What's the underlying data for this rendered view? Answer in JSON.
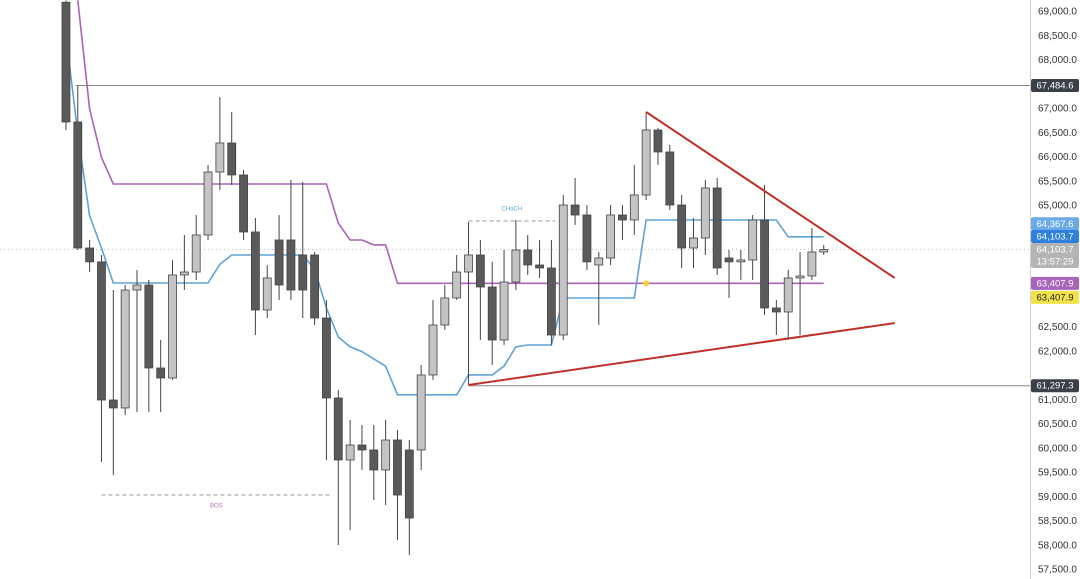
{
  "chart_data": {
    "type": "candlestick",
    "up_color": "#c4c4c4",
    "down_color": "#5a5a5a",
    "wick_color": "#444444",
    "xlim": [
      -5.57,
      81.42
    ],
    "ylim": [
      57314,
      69247
    ],
    "yticks": [
      {
        "value": 69000,
        "label": "69,000.0"
      },
      {
        "value": 68500,
        "label": "68,500.0"
      },
      {
        "value": 68000,
        "label": "68,000.0"
      },
      {
        "value": 67000,
        "label": "67,000.0"
      },
      {
        "value": 66500,
        "label": "66,500.0"
      },
      {
        "value": 66000,
        "label": "66,000.0"
      },
      {
        "value": 65500,
        "label": "65,500.0"
      },
      {
        "value": 65000,
        "label": "65,000.0"
      },
      {
        "value": 62500,
        "label": "62,500.0"
      },
      {
        "value": 62000,
        "label": "62,000.0"
      },
      {
        "value": 61000,
        "label": "61,000.0"
      },
      {
        "value": 60500,
        "label": "60,500.0"
      },
      {
        "value": 60000,
        "label": "60,000.0"
      },
      {
        "value": 59500,
        "label": "59,500.0"
      },
      {
        "value": 59000,
        "label": "59,000.0"
      },
      {
        "value": 58500,
        "label": "58,500.0"
      },
      {
        "value": 58000,
        "label": "58,000.0"
      },
      {
        "value": 57500,
        "label": "57,500.0"
      }
    ],
    "open": [
      69200,
      66733,
      64136,
      63850,
      61003,
      60839,
      63270,
      63373,
      61663,
      61457,
      63580,
      63641,
      64404,
      65702,
      66300,
      65641,
      64466,
      62858,
      64301,
      64301,
      63992,
      63992,
      62693,
      61045,
      59767,
      60076,
      59973,
      59561,
      60179,
      59973,
      59973,
      61519,
      62549,
      63106,
      63641,
      63992,
      63332,
      62240,
      63435,
      64095,
      63786,
      63724,
      62343,
      65022,
      64816,
      63786,
      63930,
      64816,
      64713,
      65228,
      66568,
      66115,
      65022,
      64136,
      64342,
      65373,
      63930,
      63850,
      63889,
      64713,
      62900,
      62817,
      63518,
      63559,
      64054
    ],
    "high": [
      69240,
      67475,
      64301,
      63992,
      63270,
      63373,
      63683,
      63477,
      62240,
      63889,
      64404,
      64816,
      65847,
      67248,
      66939,
      65744,
      64754,
      63786,
      64816,
      65538,
      65496,
      64054,
      63064,
      61210,
      60591,
      60488,
      60488,
      60591,
      60385,
      60179,
      61725,
      63064,
      63373,
      63992,
      64672,
      64301,
      63850,
      64095,
      64713,
      64404,
      64301,
      64301,
      65228,
      65579,
      65022,
      64054,
      65022,
      65022,
      65847,
      66939,
      66609,
      66259,
      65228,
      64754,
      65538,
      65579,
      64095,
      64095,
      64816,
      65434,
      63064,
      63683,
      64054,
      64548,
      64200
    ],
    "low": [
      66568,
      64095,
      63641,
      59725,
      59458,
      60694,
      60756,
      60756,
      60756,
      61416,
      63270,
      63477,
      64301,
      65331,
      65434,
      64301,
      62343,
      62693,
      63064,
      63064,
      62693,
      62549,
      59767,
      58015,
      58324,
      59561,
      58942,
      58839,
      58118,
      57809,
      59561,
      61416,
      62446,
      63064,
      61313,
      62240,
      61725,
      62137,
      63270,
      63580,
      63518,
      62137,
      62240,
      64610,
      63683,
      62549,
      63786,
      64301,
      64404,
      65125,
      65847,
      64919,
      63724,
      63724,
      63992,
      63580,
      63106,
      63477,
      63477,
      62755,
      62343,
      62240,
      62343,
      63477,
      63992
    ],
    "close": [
      66733,
      64136,
      63850,
      61003,
      60839,
      63270,
      63373,
      61663,
      61457,
      63580,
      63641,
      64404,
      65702,
      66300,
      65641,
      64466,
      62858,
      63518,
      63373,
      63270,
      63270,
      62693,
      61045,
      59767,
      60076,
      59973,
      59561,
      60179,
      59045,
      58571,
      61519,
      62549,
      63106,
      63641,
      63992,
      63332,
      62240,
      63435,
      64095,
      63786,
      63724,
      62343,
      65022,
      64816,
      63850,
      63930,
      64816,
      64713,
      65228,
      66568,
      66115,
      65022,
      64136,
      64342,
      65373,
      63724,
      63850,
      63889,
      64713,
      62900,
      62817,
      63518,
      63559,
      64054,
      64104
    ],
    "series": [
      {
        "color": "#a864b8",
        "values": [
          null,
          69240,
          67000,
          66000,
          65454,
          65454,
          65454,
          65454,
          65454,
          65454,
          65454,
          65454,
          65454,
          65454,
          65454,
          65454,
          65454,
          65454,
          65454,
          65454,
          65454,
          65454,
          65454,
          64650,
          64300,
          64300,
          64200,
          64200,
          63407.9,
          63407.9,
          63407.9,
          63407.9,
          63407.9,
          63407.9,
          63407.9,
          63407.9,
          63407.9,
          63407.9,
          63407.9,
          63407.9,
          63407.9,
          63407.9,
          63407.9,
          63407.9,
          63407.9,
          63407.9,
          63407.9,
          63407.9,
          63407.9,
          63407.9,
          63407.9,
          63407.9,
          63407.9,
          63407.9,
          63407.9,
          63407.9,
          63407.9,
          63407.9,
          63407.9,
          63407.9,
          63407.9,
          63407.9,
          63407.9,
          63407.9,
          63407.9
        ]
      },
      {
        "color": "#5fa3d6",
        "values": [
          68500,
          66500,
          64800,
          64136,
          63414,
          63414,
          63414,
          63414,
          63414,
          63414,
          63414,
          63414,
          63414,
          63800,
          63992,
          63992,
          63992,
          63992,
          63992,
          63992,
          63992,
          63700,
          62900,
          62300,
          62100,
          62000,
          61850,
          61700,
          61110,
          61110,
          61110,
          61110,
          61110,
          61110,
          61520,
          61520,
          61520,
          61700,
          62100,
          62137,
          62137,
          62137,
          63106,
          63106,
          63106,
          63106,
          63106,
          63106,
          63106,
          64713,
          64713,
          64713,
          64713,
          64713,
          64713,
          64713,
          64713,
          64713,
          64713,
          64713,
          64713,
          64367.6,
          64367.6,
          64367.6,
          64367.6
        ]
      }
    ],
    "levels": [
      {
        "value": 67484.6,
        "color": "#888888"
      },
      {
        "value": 61297.3,
        "color": "#888888"
      }
    ],
    "trendlines": [
      {
        "x": [
          49,
          70
        ],
        "values": [
          66939,
          63518
        ],
        "color": "#c0302a"
      },
      {
        "x": [
          34,
          70
        ],
        "values": [
          61313,
          62590
        ],
        "color": "#c0302a"
      }
    ],
    "annotations": [
      {
        "text": "BOS",
        "x": [
          3,
          22.4
        ],
        "value": 59045,
        "color": "#b06fb0"
      },
      {
        "text": "CHoCH",
        "x": [
          34,
          41.3
        ],
        "value": 64693,
        "color": "#5fa3d6"
      }
    ],
    "marker": {
      "x": 49,
      "value": 63407.9,
      "color": "#f2d43a"
    },
    "current_price": 64103.7,
    "price_tags": [
      {
        "value": 67484.6,
        "label": "67,484.6",
        "color": "#3b3f48"
      },
      {
        "value": 64367.6,
        "label": "64,367.6",
        "color": "#6aaae8"
      },
      {
        "value": 64103.7,
        "label": "64,103.7",
        "color": "#2f80dc"
      },
      {
        "value": 64103.7,
        "label": "64,103.7",
        "time": "13:57:29",
        "color": "#b4b4b4"
      },
      {
        "value": 63407.9,
        "label": "63,407.9",
        "color": "#a864b8"
      },
      {
        "value": 63407.9,
        "label": "63,407.9",
        "color": "#f2e24a"
      },
      {
        "value": 61297.3,
        "label": "61,297.3",
        "color": "#3b3f48"
      }
    ]
  }
}
